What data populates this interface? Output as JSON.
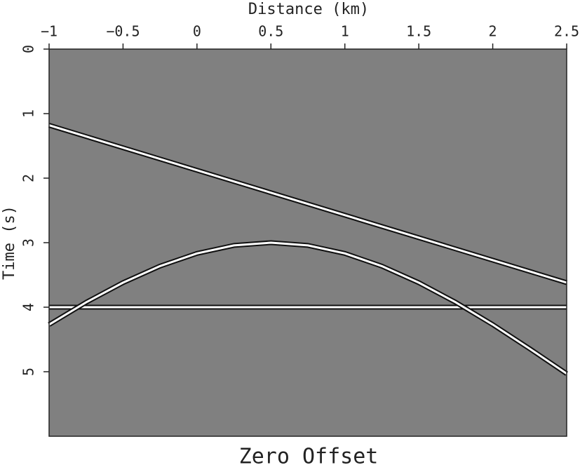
{
  "chart_data": {
    "type": "line",
    "title": "Zero Offset",
    "x_label": "Distance (km)",
    "y_label": "Time (s)",
    "background": "#808080",
    "xlim": [
      -1,
      2.5
    ],
    "xticks": [
      {
        "value": -1,
        "label": "−1"
      },
      {
        "value": -0.5,
        "label": "−0.5"
      },
      0,
      0.5,
      1,
      1.5,
      2,
      2.5
    ],
    "ylim": [
      0,
      6
    ],
    "yticks": [
      0,
      1,
      2,
      3,
      4,
      5
    ],
    "y_inverted": true,
    "series": [
      {
        "color": "#ffffff",
        "x": [
          -1,
          2.5
        ],
        "values": [
          1.18,
          3.62
        ]
      },
      {
        "color": "#ffffff",
        "x": [
          -1,
          2.5
        ],
        "values": [
          4,
          4
        ]
      },
      {
        "color": "#ffffff",
        "x": [
          -1,
          -0.75,
          -0.5,
          -0.25,
          0,
          0.25,
          0.5,
          0.75,
          1,
          1.25,
          1.5,
          1.75,
          2,
          2.25,
          2.5
        ],
        "values": [
          4.27,
          3.925,
          3.62,
          3.363,
          3.166,
          3.042,
          3,
          3.042,
          3.166,
          3.363,
          3.62,
          3.925,
          4.27,
          4.643,
          5.03
        ]
      }
    ]
  }
}
